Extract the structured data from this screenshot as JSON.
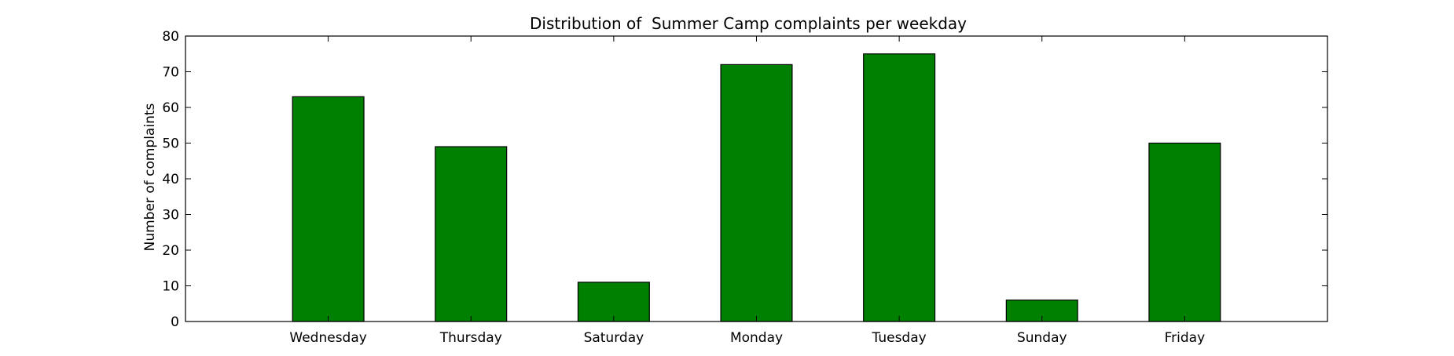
{
  "chart_data": {
    "type": "bar",
    "title": "Distribution of  Summer Camp complaints per weekday",
    "xlabel": "",
    "ylabel": "Number of complaints",
    "categories": [
      "Wednesday",
      "Thursday",
      "Saturday",
      "Monday",
      "Tuesday",
      "Sunday",
      "Friday"
    ],
    "values": [
      63,
      49,
      11,
      72,
      75,
      6,
      50
    ],
    "ylim": [
      0,
      80
    ],
    "xlim": [
      -1,
      7
    ],
    "yticks": [
      0,
      10,
      20,
      30,
      40,
      50,
      60,
      70,
      80
    ],
    "bar_color": "#008000",
    "edge_color": "#000000",
    "grid": false,
    "legend": false
  }
}
